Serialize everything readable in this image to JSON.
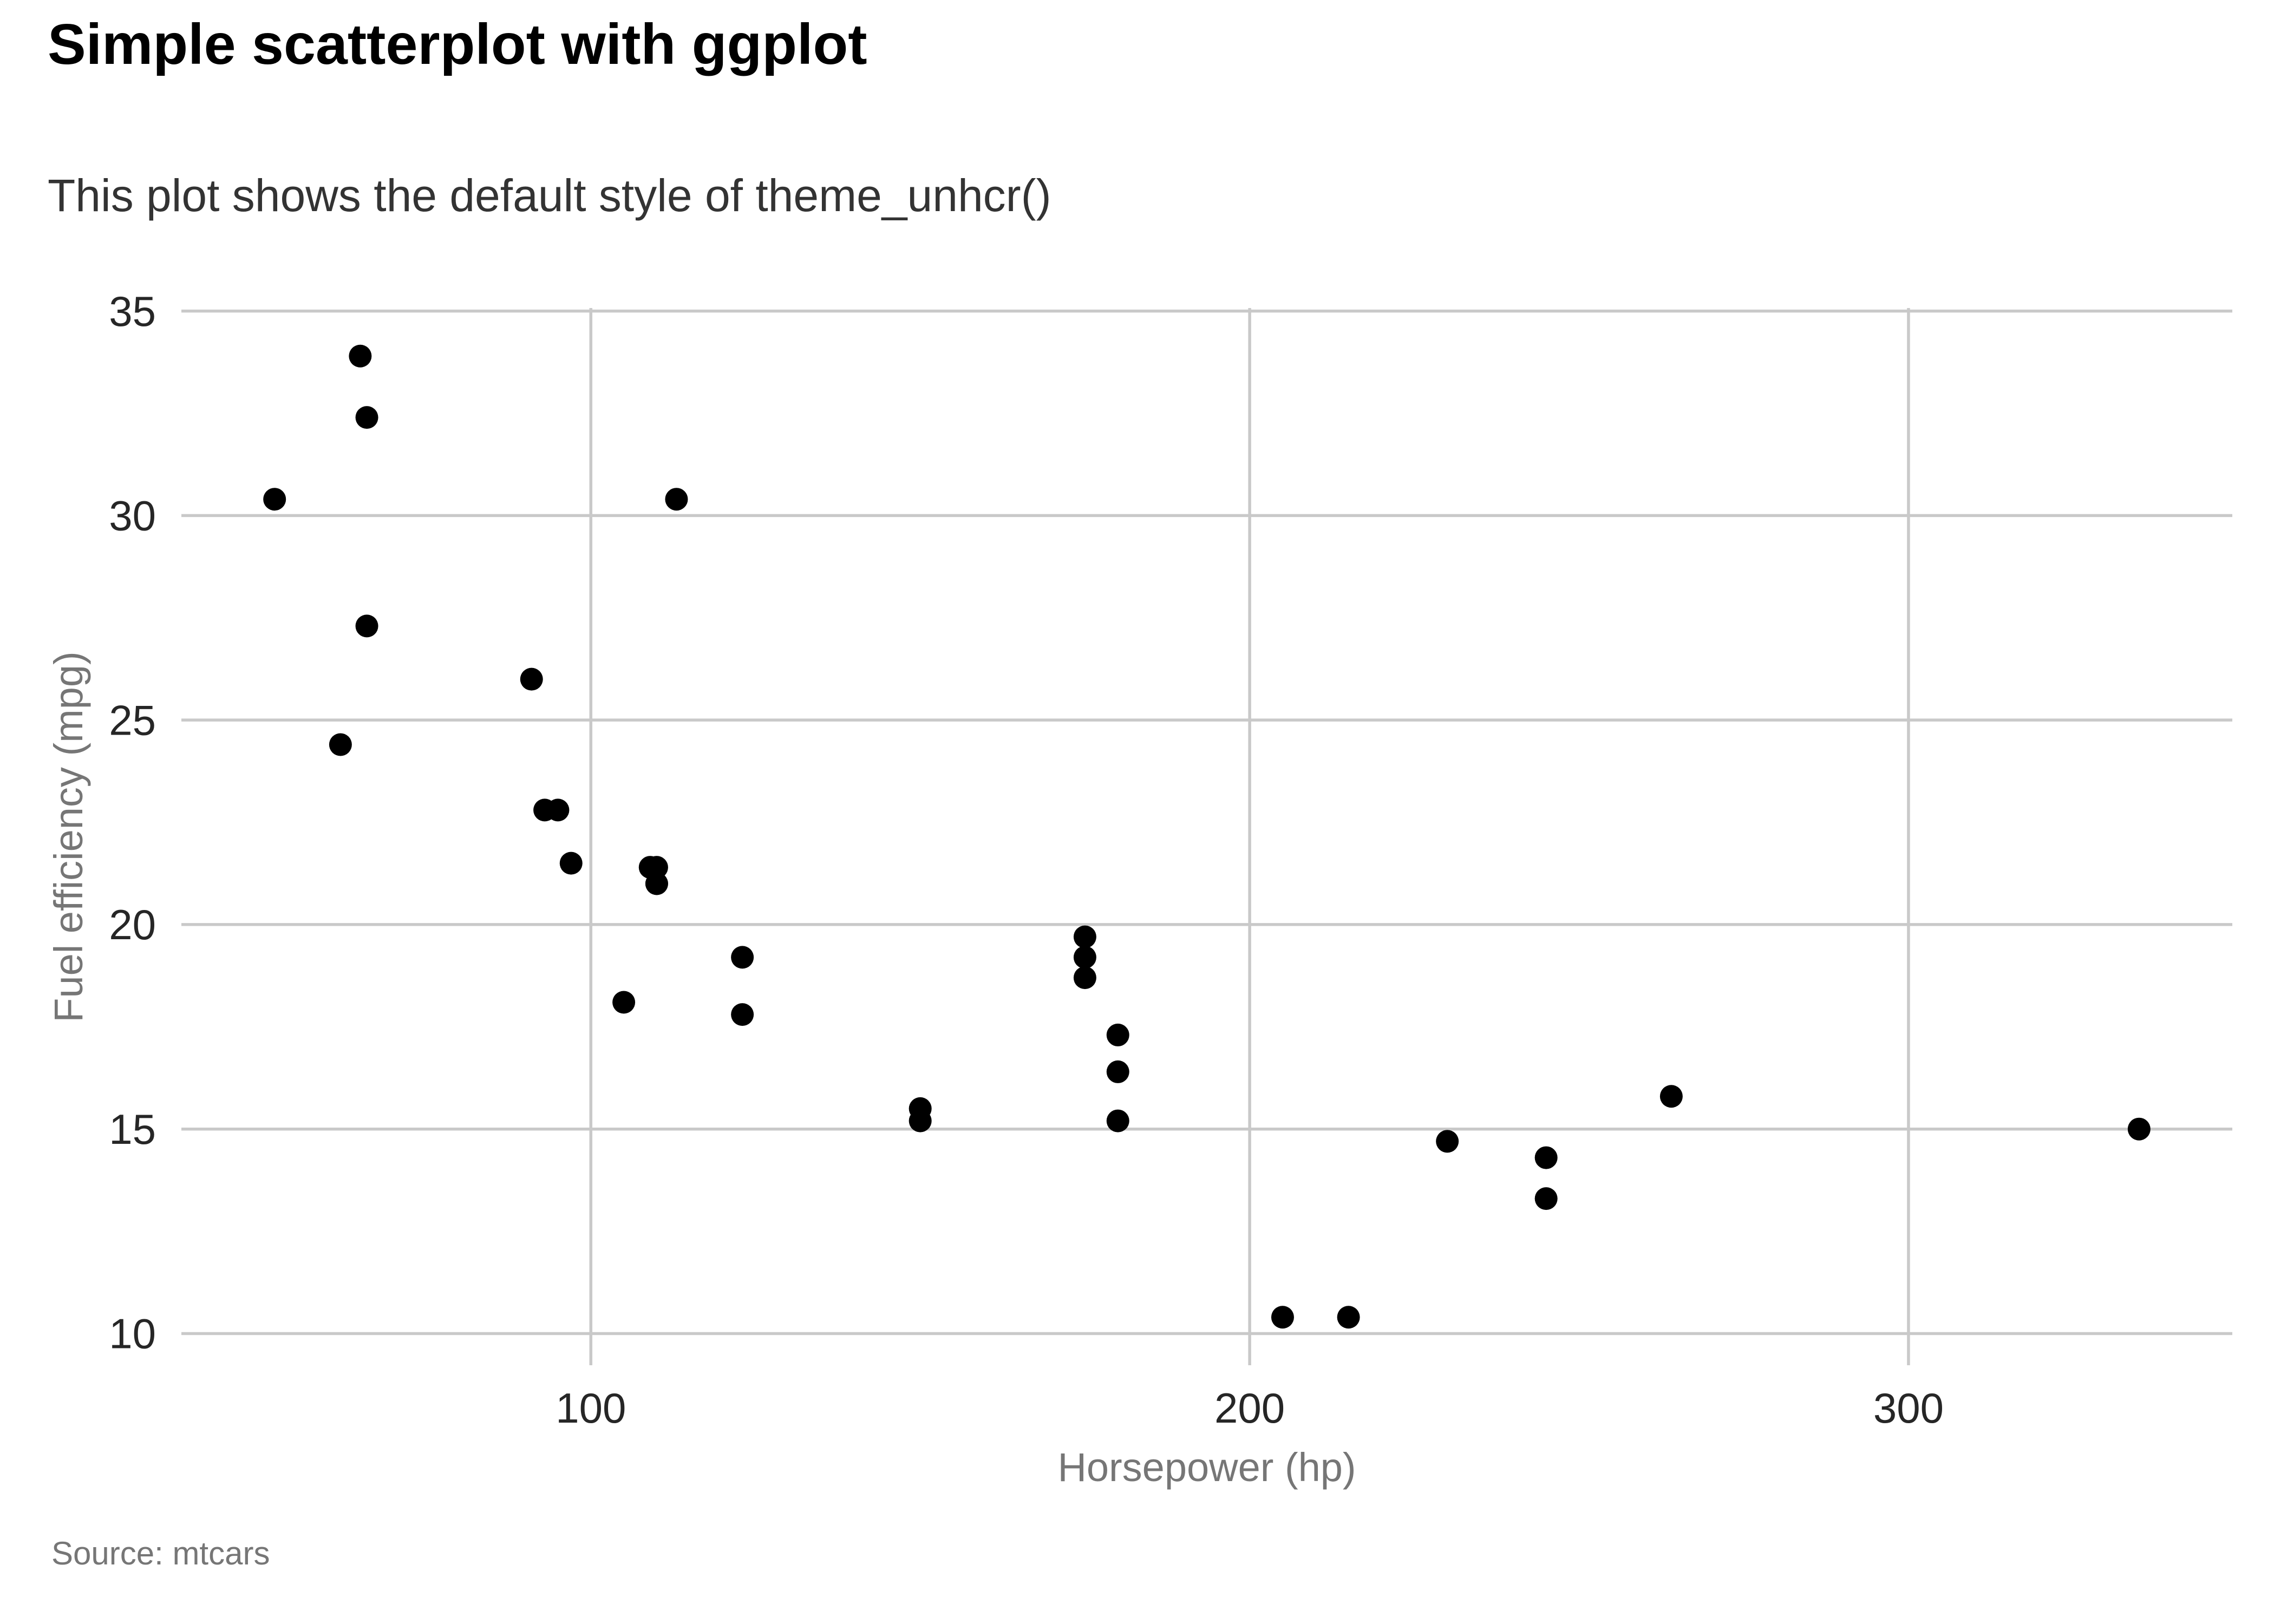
{
  "chart_data": {
    "type": "scatter",
    "title": "Simple scatterplot with ggplot",
    "subtitle": "This plot shows the default style of theme_unhcr()",
    "source": "Source: mtcars",
    "xlabel": "Horsepower (hp)",
    "ylabel": "Fuel efficiency (mpg)",
    "x_ticks": [
      100,
      200,
      300
    ],
    "y_ticks": [
      10,
      15,
      20,
      25,
      30,
      35
    ],
    "xlim": [
      37.85,
      349.15
    ],
    "ylim": [
      9.225,
      35.075
    ],
    "grid": "both",
    "legend": "none",
    "points": [
      [
        110,
        21.0
      ],
      [
        110,
        21.0
      ],
      [
        93,
        22.8
      ],
      [
        110,
        21.4
      ],
      [
        175,
        18.7
      ],
      [
        105,
        18.1
      ],
      [
        245,
        14.3
      ],
      [
        62,
        24.4
      ],
      [
        95,
        22.8
      ],
      [
        123,
        19.2
      ],
      [
        123,
        17.8
      ],
      [
        180,
        16.4
      ],
      [
        180,
        17.3
      ],
      [
        180,
        15.2
      ],
      [
        205,
        10.4
      ],
      [
        215,
        10.4
      ],
      [
        230,
        14.7
      ],
      [
        66,
        32.4
      ],
      [
        52,
        30.4
      ],
      [
        65,
        33.9
      ],
      [
        97,
        21.5
      ],
      [
        150,
        15.5
      ],
      [
        150,
        15.2
      ],
      [
        245,
        13.3
      ],
      [
        175,
        19.2
      ],
      [
        66,
        27.3
      ],
      [
        91,
        26.0
      ],
      [
        113,
        30.4
      ],
      [
        264,
        15.8
      ],
      [
        175,
        19.7
      ],
      [
        335,
        15.0
      ],
      [
        109,
        21.4
      ]
    ],
    "colors": {
      "title": "#000000",
      "subtitle": "#333333",
      "tick_label": "#262626",
      "axis_title": "#767676",
      "source": "#767676",
      "grid": "#c9c9c9",
      "point": "#000000",
      "background": "#ffffff"
    }
  }
}
